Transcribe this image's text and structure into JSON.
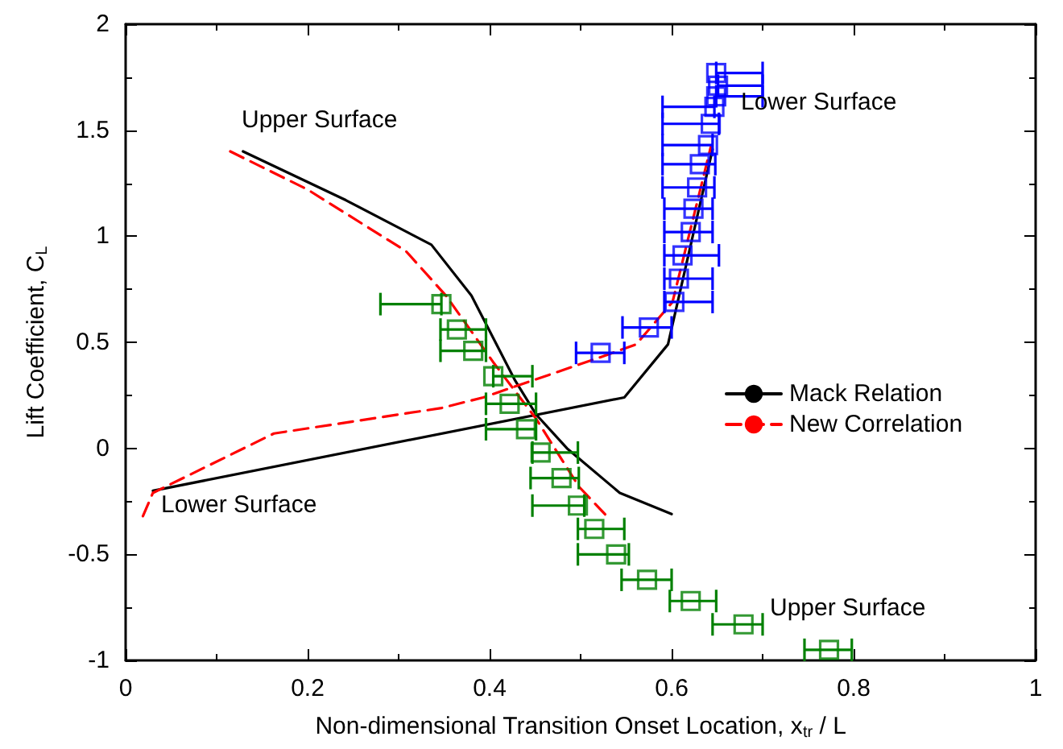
{
  "chart_data": {
    "type": "line",
    "xlabel": "Non-dimensional Transition Onset Location, x$_{tr}$ / L",
    "ylabel": "Lift Coefficient, C$_{L}$",
    "xlim": [
      0,
      1
    ],
    "xticks": [
      0,
      0.2,
      0.4,
      0.6,
      0.8,
      1
    ],
    "ylim": [
      -1,
      2
    ],
    "yticks": [
      -1,
      -0.5,
      0,
      0.5,
      1,
      1.5,
      2
    ],
    "grid": false,
    "legend": "right",
    "series": [
      {
        "name": "Mack Relation",
        "color": "#000000",
        "line_style": "solid",
        "marker": "none",
        "x": [
          0.129,
          0.242,
          0.336,
          0.38,
          0.428,
          0.451,
          0.485,
          0.543,
          0.6
        ],
        "values": [
          1.4,
          1.17,
          0.96,
          0.72,
          0.32,
          0.16,
          0.0,
          -0.21,
          -0.31
        ]
      },
      {
        "color": "#000000",
        "line_style": "solid",
        "marker": "none",
        "x": [
          0.03,
          0.548,
          0.596,
          0.645
        ],
        "values": [
          -0.2,
          0.24,
          0.49,
          1.41
        ]
      },
      {
        "name": "New Correlation",
        "color": "#ff0000",
        "line_style": "dashed",
        "marker": "none",
        "x": [
          0.115,
          0.2,
          0.308,
          0.352,
          0.405,
          0.451,
          0.498,
          0.531
        ],
        "values": [
          1.4,
          1.22,
          0.93,
          0.72,
          0.4,
          0.14,
          -0.18,
          -0.33
        ]
      },
      {
        "color": "#ff0000",
        "line_style": "dashed",
        "marker": "none",
        "x": [
          0.019,
          0.03,
          0.163,
          0.347,
          0.393,
          0.522,
          0.561,
          0.601,
          0.643
        ],
        "values": [
          -0.32,
          -0.21,
          0.07,
          0.19,
          0.24,
          0.43,
          0.49,
          0.69,
          1.42
        ]
      },
      {
        "type": "scatter",
        "color": "#008000",
        "marker": "square",
        "x": [
          0.347,
          0.364,
          0.382,
          0.404,
          0.422,
          0.44,
          0.456,
          0.479,
          0.497,
          0.515,
          0.539,
          0.573,
          0.621,
          0.679,
          0.773
        ],
        "values": [
          0.68,
          0.56,
          0.46,
          0.34,
          0.21,
          0.09,
          -0.02,
          -0.14,
          -0.27,
          -0.38,
          -0.5,
          -0.62,
          -0.72,
          -0.83,
          -0.95
        ],
        "xerrors": [
          [
            0.28,
            0.347
          ],
          [
            0.346,
            0.396
          ],
          [
            0.346,
            0.396
          ],
          [
            0.404,
            0.447
          ],
          [
            0.396,
            0.451
          ],
          [
            0.396,
            0.451
          ],
          [
            0.447,
            0.497
          ],
          [
            0.445,
            0.498
          ],
          [
            0.447,
            0.504
          ],
          [
            0.497,
            0.548
          ],
          [
            0.497,
            0.553
          ],
          [
            0.545,
            0.6
          ],
          [
            0.598,
            0.649
          ],
          [
            0.645,
            0.7
          ],
          [
            0.746,
            0.798
          ]
        ]
      },
      {
        "type": "scatter",
        "color": "#0000ff",
        "marker": "square",
        "x": [
          0.522,
          0.575,
          0.603,
          0.608,
          0.612,
          0.621,
          0.624,
          0.628,
          0.631,
          0.64,
          0.643,
          0.647,
          0.649,
          0.651,
          0.649
        ],
        "values": [
          0.45,
          0.57,
          0.69,
          0.8,
          0.91,
          1.02,
          1.13,
          1.23,
          1.34,
          1.43,
          1.53,
          1.61,
          1.66,
          1.71,
          1.77
        ],
        "xerrors": [
          [
            0.495,
            0.548
          ],
          [
            0.546,
            0.6
          ],
          [
            0.592,
            0.645
          ],
          [
            0.592,
            0.645
          ],
          [
            0.592,
            0.652
          ],
          [
            0.592,
            0.645
          ],
          [
            0.592,
            0.645
          ],
          [
            0.59,
            0.647
          ],
          [
            0.59,
            0.648
          ],
          [
            0.59,
            0.645
          ],
          [
            0.59,
            0.652
          ],
          [
            0.59,
            0.647
          ],
          [
            0.649,
            0.7
          ],
          [
            0.651,
            0.7
          ],
          [
            0.649,
            0.7
          ]
        ]
      }
    ],
    "annotations": [
      "Upper Surface",
      "Lower Surface",
      "Lower Surface",
      "Upper Surface"
    ]
  }
}
